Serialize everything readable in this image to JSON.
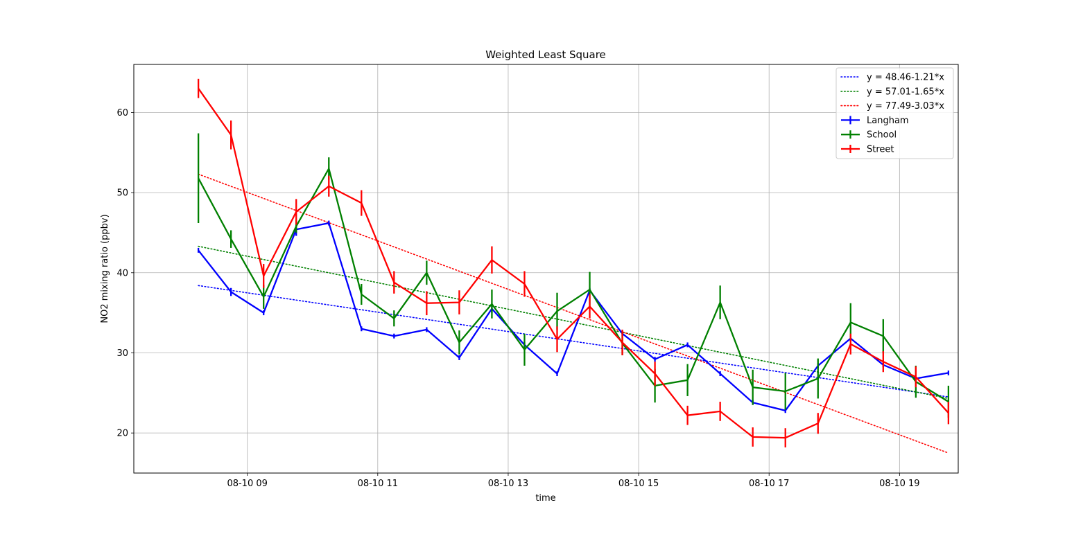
{
  "chart_data": {
    "type": "line",
    "title": "Weighted Least Square",
    "xlabel": "time",
    "ylabel": "NO2 mixing ratio (ppbv)",
    "x_tick_labels": [
      "08-10 09",
      "08-10 11",
      "08-10 13",
      "08-10 15",
      "08-10 17",
      "08-10 19"
    ],
    "x_tick_hours": [
      9,
      11,
      13,
      15,
      17,
      19
    ],
    "x_unit": "hour of 08-10",
    "xlim": [
      7.26,
      19.9
    ],
    "ylim": [
      15,
      66
    ],
    "y_ticks": [
      20,
      30,
      40,
      50,
      60
    ],
    "grid": true,
    "legend_position": "top-right",
    "x": [
      8.25,
      8.75,
      9.25,
      9.75,
      10.25,
      10.75,
      11.25,
      11.75,
      12.25,
      12.75,
      13.25,
      13.75,
      14.25,
      14.75,
      15.25,
      15.75,
      16.25,
      16.75,
      17.25,
      17.75,
      18.25,
      18.75,
      19.25,
      19.75
    ],
    "series": [
      {
        "name": "Langham",
        "color": "#0000ff",
        "values": [
          42.8,
          37.6,
          35.0,
          45.4,
          46.2,
          33.0,
          32.1,
          32.9,
          29.4,
          35.5,
          31.0,
          27.4,
          37.8,
          32.4,
          29.2,
          31.0,
          27.4,
          23.8,
          22.8,
          28.4,
          31.8,
          28.5,
          26.8,
          27.5
        ],
        "errors": [
          0.3,
          0.5,
          0.3,
          0.8,
          0.3,
          0.3,
          0.3,
          0.3,
          0.3,
          0.5,
          0.3,
          0.3,
          0.3,
          0.3,
          0.3,
          0.3,
          0.3,
          0.3,
          0.3,
          0.3,
          0.3,
          0.3,
          0.3,
          0.3
        ]
      },
      {
        "name": "School",
        "color": "#008000",
        "values": [
          51.8,
          44.2,
          37.0,
          45.8,
          53.0,
          37.3,
          34.3,
          40.0,
          31.3,
          36.1,
          30.4,
          35.2,
          37.9,
          31.2,
          25.9,
          26.6,
          36.3,
          25.7,
          25.2,
          26.8,
          33.8,
          32.1,
          26.4,
          23.9
        ],
        "errors": [
          5.6,
          1.1,
          1.5,
          0.8,
          1.4,
          1.3,
          1.0,
          1.5,
          1.5,
          1.8,
          2.0,
          2.3,
          2.2,
          1.5,
          2.1,
          2.0,
          2.1,
          2.2,
          2.3,
          2.5,
          2.4,
          2.1,
          2.0,
          2.0
        ]
      },
      {
        "name": "Street",
        "color": "#ff0000",
        "values": [
          63.0,
          57.2,
          39.6,
          47.6,
          50.8,
          48.7,
          38.8,
          36.2,
          36.3,
          41.6,
          38.6,
          31.7,
          35.8,
          31.3,
          27.4,
          22.2,
          22.7,
          19.5,
          19.4,
          21.2,
          31.1,
          28.9,
          27.0,
          22.5
        ],
        "errors": [
          1.2,
          1.8,
          1.5,
          1.6,
          1.3,
          1.6,
          1.4,
          1.5,
          1.5,
          1.7,
          1.6,
          1.6,
          1.5,
          1.6,
          1.5,
          1.2,
          1.2,
          1.2,
          1.2,
          1.3,
          1.3,
          1.3,
          1.3,
          1.4
        ]
      }
    ],
    "fits": [
      {
        "name": "y = 48.46-1.21*x",
        "color": "#0000ff",
        "y_start": 38.4,
        "y_end": 24.5
      },
      {
        "name": "y = 57.01-1.65*x",
        "color": "#008000",
        "y_start": 43.3,
        "y_end": 24.3
      },
      {
        "name": "y = 77.49-3.03*x",
        "color": "#ff0000",
        "y_start": 52.3,
        "y_end": 17.5
      }
    ]
  }
}
